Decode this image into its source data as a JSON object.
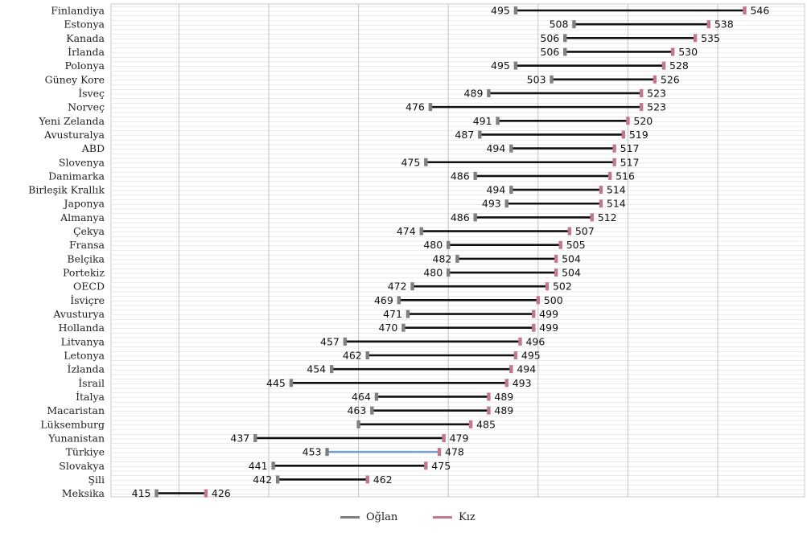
{
  "chart_data": {
    "type": "dumbbell",
    "title": "",
    "xlabel": "",
    "ylabel": "",
    "xlim": [
      400,
      560
    ],
    "grid": true,
    "legend_placement": "bottom-center",
    "series": [
      {
        "name": "Oğlan",
        "color": "#7f7f7f"
      },
      {
        "name": "Kız",
        "color": "#c0788a"
      }
    ],
    "highlight_line_color": "#6e9fcf",
    "line_color": "#111111",
    "rows": [
      {
        "country": "Finlandiya",
        "oglan": 495,
        "kiz": 546
      },
      {
        "country": "Estonya",
        "oglan": 508,
        "kiz": 538
      },
      {
        "country": "Kanada",
        "oglan": 506,
        "kiz": 535
      },
      {
        "country": "İrlanda",
        "oglan": 506,
        "kiz": 530
      },
      {
        "country": "Polonya",
        "oglan": 495,
        "kiz": 528
      },
      {
        "country": "Güney Kore",
        "oglan": 503,
        "kiz": 526
      },
      {
        "country": "İsveç",
        "oglan": 489,
        "kiz": 523
      },
      {
        "country": "Norveç",
        "oglan": 476,
        "kiz": 523
      },
      {
        "country": "Yeni Zelanda",
        "oglan": 491,
        "kiz": 520
      },
      {
        "country": "Avusturalya",
        "oglan": 487,
        "kiz": 519
      },
      {
        "country": "ABD",
        "oglan": 494,
        "kiz": 517
      },
      {
        "country": "Slovenya",
        "oglan": 475,
        "kiz": 517
      },
      {
        "country": "Danimarka",
        "oglan": 486,
        "kiz": 516
      },
      {
        "country": "Birleşik Krallık",
        "oglan": 494,
        "kiz": 514
      },
      {
        "country": "Japonya",
        "oglan": 493,
        "kiz": 514
      },
      {
        "country": "Almanya",
        "oglan": 486,
        "kiz": 512
      },
      {
        "country": "Çekya",
        "oglan": 474,
        "kiz": 507
      },
      {
        "country": "Fransa",
        "oglan": 480,
        "kiz": 505
      },
      {
        "country": "Belçika",
        "oglan": 482,
        "kiz": 504
      },
      {
        "country": "Portekiz",
        "oglan": 480,
        "kiz": 504
      },
      {
        "country": "OECD",
        "oglan": 472,
        "kiz": 502
      },
      {
        "country": "İsviçre",
        "oglan": 469,
        "kiz": 500
      },
      {
        "country": "Avusturya",
        "oglan": 471,
        "kiz": 499
      },
      {
        "country": "Hollanda",
        "oglan": 470,
        "kiz": 499
      },
      {
        "country": "Litvanya",
        "oglan": 457,
        "kiz": 496
      },
      {
        "country": "Letonya",
        "oglan": 462,
        "kiz": 495
      },
      {
        "country": "İzlanda",
        "oglan": 454,
        "kiz": 494
      },
      {
        "country": "İsrail",
        "oglan": 445,
        "kiz": 493
      },
      {
        "country": "İtalya",
        "oglan": 464,
        "kiz": 489
      },
      {
        "country": "Macaristan",
        "oglan": 463,
        "kiz": 489
      },
      {
        "country": "Lüksemburg",
        "oglan": 460,
        "kiz": 485,
        "oglan_label_shown": false
      },
      {
        "country": "Yunanistan",
        "oglan": 437,
        "kiz": 479
      },
      {
        "country": "Türkiye",
        "oglan": 453,
        "kiz": 478,
        "highlight": true
      },
      {
        "country": "Slovakya",
        "oglan": 441,
        "kiz": 475
      },
      {
        "country": "Şili",
        "oglan": 442,
        "kiz": 462
      },
      {
        "country": "Meksika",
        "oglan": 415,
        "kiz": 426
      }
    ]
  }
}
